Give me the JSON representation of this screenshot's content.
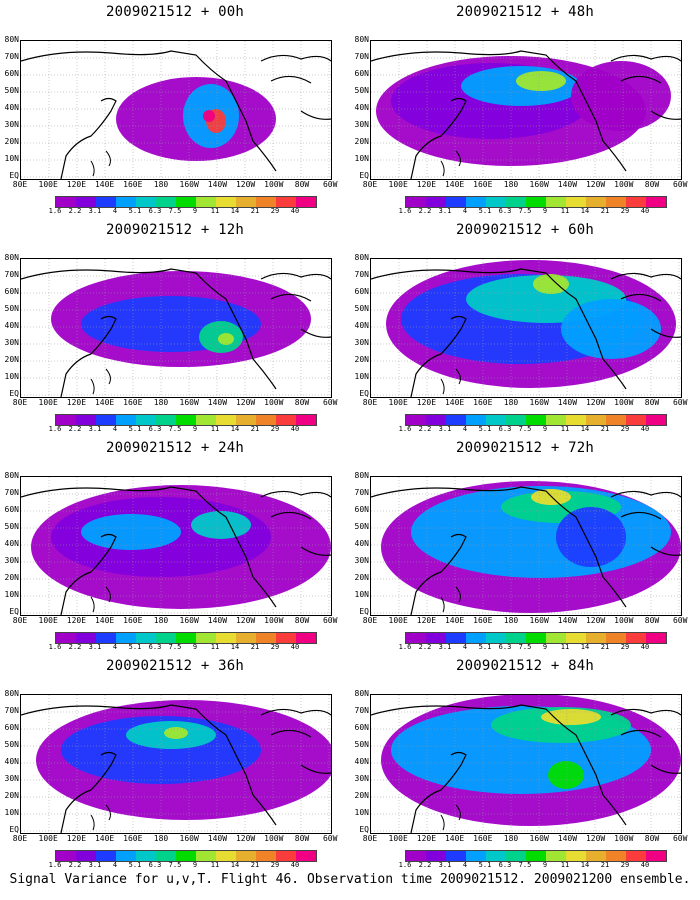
{
  "panels": [
    {
      "title": "2009021512 + 00h"
    },
    {
      "title": "2009021512 + 48h"
    },
    {
      "title": "2009021512 + 12h"
    },
    {
      "title": "2009021512 + 60h"
    },
    {
      "title": "2009021512 + 24h"
    },
    {
      "title": "2009021512 + 72h"
    },
    {
      "title": "2009021512 + 36h"
    },
    {
      "title": "2009021512 + 84h"
    }
  ],
  "lat_labels": [
    "80N",
    "70N",
    "60N",
    "50N",
    "40N",
    "30N",
    "20N",
    "10N",
    "EQ"
  ],
  "lon_labels": [
    "80E",
    "100E",
    "120E",
    "140E",
    "160E",
    "180",
    "160W",
    "140W",
    "120W",
    "100W",
    "80W",
    "60W"
  ],
  "colorbar": {
    "labels": [
      "1.6",
      "2.2",
      "3.1",
      "4",
      "5.1",
      "6.3",
      "7.5",
      "9",
      "11",
      "14",
      "21",
      "29",
      "40"
    ],
    "colors": [
      "#a000c8",
      "#8200dc",
      "#1e3cff",
      "#00a0ff",
      "#00c8c8",
      "#00d28c",
      "#00dc00",
      "#a0e632",
      "#e6dc32",
      "#e6af2d",
      "#f08228",
      "#fa3c3c",
      "#f00082"
    ]
  },
  "caption": "Signal Variance for u,v,T. Flight 46. Observation time 2009021512. 2009021200 ensemble."
}
